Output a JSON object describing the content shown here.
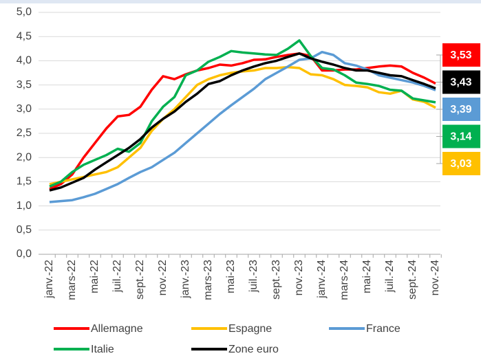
{
  "chart_data": {
    "type": "line",
    "categories": [
      "janv.-22",
      null,
      "mars-22",
      null,
      "mai-22",
      null,
      "juil.-22",
      null,
      "sept.-22",
      null,
      "nov.-22",
      null,
      "janv.-23",
      null,
      "mars-23",
      null,
      "mai-23",
      null,
      "juil.-23",
      null,
      "sept.-23",
      null,
      "nov.-23",
      null,
      "janv.-24",
      null,
      "mars-24",
      null,
      "mai-24",
      null,
      "juil.-24",
      null,
      "sept.-24",
      null,
      "nov.-24"
    ],
    "ylim": [
      0,
      5
    ],
    "yticks": [
      {
        "value": 0,
        "label": "0,0"
      },
      {
        "value": 0.5,
        "label": "0,5"
      },
      {
        "value": 1,
        "label": "1,0"
      },
      {
        "value": 1.5,
        "label": "1,5"
      },
      {
        "value": 2,
        "label": "2,0"
      },
      {
        "value": 2.5,
        "label": "2,5"
      },
      {
        "value": 3,
        "label": "3,0"
      },
      {
        "value": 3.5,
        "label": "3,5"
      },
      {
        "value": 4,
        "label": "4,0"
      },
      {
        "value": 4.5,
        "label": "4,5"
      },
      {
        "value": 5,
        "label": "5,0"
      }
    ],
    "grid": true,
    "legend": "bottom",
    "series": [
      {
        "name": "Allemagne",
        "color": "#ff0000",
        "values": [
          1.35,
          1.45,
          1.65,
          2.0,
          2.3,
          2.6,
          2.85,
          2.88,
          3.05,
          3.4,
          3.68,
          3.62,
          3.72,
          3.8,
          3.85,
          3.92,
          3.9,
          3.95,
          4.02,
          4.03,
          4.08,
          4.12,
          4.15,
          4.1,
          3.8,
          3.8,
          3.82,
          3.82,
          3.85,
          3.88,
          3.9,
          3.88,
          3.75,
          3.65,
          3.53
        ],
        "end_label": {
          "value": 3.53,
          "label": "3,53"
        }
      },
      {
        "name": "Espagne",
        "color": "#ffc000",
        "values": [
          1.45,
          1.5,
          1.55,
          1.6,
          1.65,
          1.7,
          1.8,
          2.0,
          2.2,
          2.55,
          2.8,
          3.0,
          3.25,
          3.5,
          3.62,
          3.7,
          3.75,
          3.78,
          3.8,
          3.85,
          3.85,
          3.87,
          3.85,
          3.72,
          3.7,
          3.62,
          3.5,
          3.48,
          3.45,
          3.35,
          3.32,
          3.38,
          3.2,
          3.15,
          3.03
        ],
        "end_label": {
          "value": 3.03,
          "label": "3,03"
        }
      },
      {
        "name": "France",
        "color": "#5b9bd5",
        "values": [
          1.08,
          1.1,
          1.12,
          1.18,
          1.25,
          1.35,
          1.45,
          1.58,
          1.7,
          1.8,
          1.95,
          2.1,
          2.3,
          2.5,
          2.7,
          2.9,
          3.08,
          3.25,
          3.42,
          3.62,
          3.75,
          3.88,
          4.02,
          4.05,
          4.18,
          4.12,
          3.95,
          3.9,
          3.82,
          3.7,
          3.65,
          3.6,
          3.55,
          3.48,
          3.39
        ],
        "end_label": {
          "value": 3.39,
          "label": "3,39"
        }
      },
      {
        "name": "Italie",
        "color": "#00b050",
        "values": [
          1.4,
          1.5,
          1.7,
          1.85,
          1.95,
          2.05,
          2.18,
          2.12,
          2.3,
          2.75,
          3.05,
          3.25,
          3.7,
          3.8,
          3.98,
          4.08,
          4.2,
          4.17,
          4.15,
          4.13,
          4.12,
          4.25,
          4.42,
          4.1,
          3.85,
          3.82,
          3.7,
          3.55,
          3.52,
          3.48,
          3.4,
          3.38,
          3.22,
          3.18,
          3.14
        ],
        "end_label": {
          "value": 3.14,
          "label": "3,14"
        }
      },
      {
        "name": "Zone euro",
        "color": "#000000",
        "values": [
          1.32,
          1.38,
          1.48,
          1.58,
          1.75,
          1.9,
          2.05,
          2.2,
          2.38,
          2.62,
          2.8,
          2.95,
          3.15,
          3.32,
          3.52,
          3.58,
          3.7,
          3.8,
          3.88,
          3.95,
          4.0,
          4.08,
          4.15,
          4.05,
          3.98,
          3.92,
          3.85,
          3.8,
          3.8,
          3.75,
          3.7,
          3.68,
          3.6,
          3.52,
          3.43
        ],
        "end_label": {
          "value": 3.43,
          "label": "3,43"
        }
      }
    ]
  }
}
